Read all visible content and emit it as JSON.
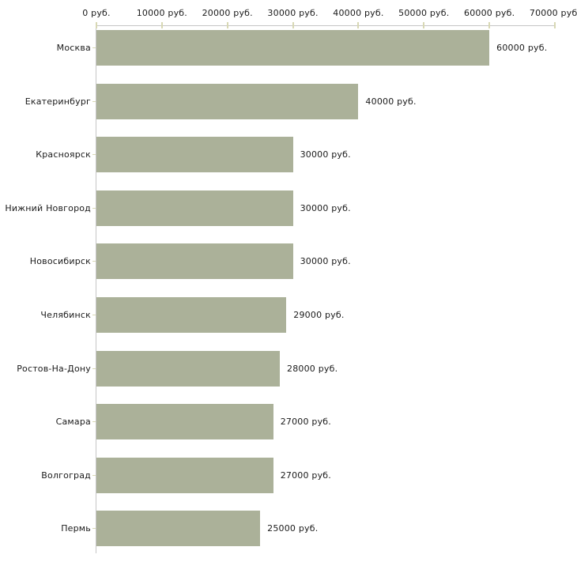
{
  "chart_data": {
    "type": "bar",
    "orientation": "horizontal",
    "title": "",
    "xlabel": "",
    "ylabel": "",
    "unit_suffix": " руб.",
    "categories": [
      "Москва",
      "Екатеринбург",
      "Красноярск",
      "Нижний Новгород",
      "Новосибирск",
      "Челябинск",
      "Ростов-На-Дону",
      "Самара",
      "Волгоград",
      "Пермь"
    ],
    "values": [
      60000,
      40000,
      30000,
      30000,
      30000,
      29000,
      28000,
      27000,
      27000,
      25000
    ],
    "value_labels": [
      "60000 руб.",
      "40000 руб.",
      "30000 руб.",
      "30000 руб.",
      "30000 руб.",
      "29000 руб.",
      "28000 руб.",
      "27000 руб.",
      "27000 руб.",
      "25000 руб."
    ],
    "x_axis": {
      "position": "top",
      "min": 0,
      "max": 70000,
      "tick_values": [
        0,
        10000,
        20000,
        30000,
        40000,
        50000,
        60000,
        70000
      ],
      "tick_labels": [
        "0 руб.",
        "10000 руб.",
        "20000 руб.",
        "30000 руб.",
        "40000 руб.",
        "50000 руб.",
        "60000 руб.",
        "70000 руб."
      ]
    },
    "grid": false,
    "legend": null,
    "colors": {
      "bar": "#abb199",
      "axis_line": "#c6c6c6",
      "tick": "#d8d8b4",
      "text": "#1a1a1a",
      "background": "#ffffff"
    }
  }
}
